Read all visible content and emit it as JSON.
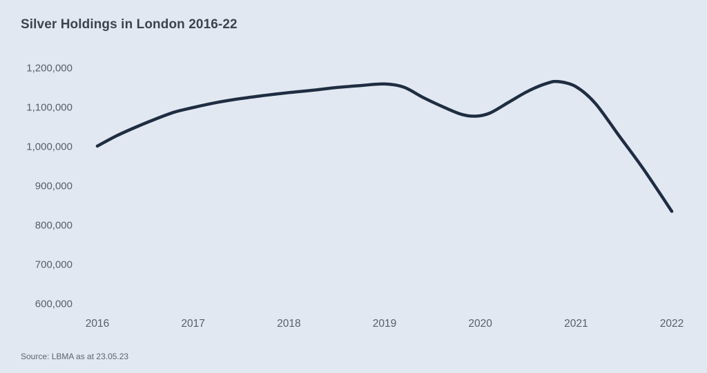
{
  "chart": {
    "title": "Silver Holdings in London 2016-22",
    "source": "Source: LBMA as at 23.05.23"
  },
  "colors": {
    "background": "#e2e8f1",
    "line": "#1f2d42",
    "title_text": "#3a4450",
    "axis_text": "#545e6a",
    "source_text": "#5a6470"
  },
  "chart_data": {
    "type": "line",
    "title": "Silver Holdings in London 2016-22",
    "xlabel": "",
    "ylabel": "",
    "xlim": [
      2016,
      2022
    ],
    "ylim": [
      600000,
      1200000
    ],
    "grid": false,
    "legend": false,
    "x_ticks": [
      2016,
      2017,
      2018,
      2019,
      2020,
      2021,
      2022
    ],
    "x_tick_labels": [
      "2016",
      "2017",
      "2018",
      "2019",
      "2020",
      "2021",
      "2022"
    ],
    "y_ticks": [
      600000,
      700000,
      800000,
      900000,
      1000000,
      1100000,
      1200000
    ],
    "y_tick_labels": [
      "600,000",
      "700,000",
      "800,000",
      "900,000",
      "1,000,000",
      "1,100,000",
      "1,200,000"
    ],
    "annotations": [],
    "source": "Source: LBMA as at 23.05.23",
    "series": [
      {
        "name": "Silver Holdings in London",
        "x": [
          2016.0,
          2016.2,
          2016.4,
          2016.6,
          2016.8,
          2017.0,
          2017.25,
          2017.5,
          2017.75,
          2018.0,
          2018.25,
          2018.5,
          2018.75,
          2019.0,
          2019.2,
          2019.4,
          2019.6,
          2019.8,
          2019.95,
          2020.1,
          2020.3,
          2020.5,
          2020.7,
          2020.82,
          2021.0,
          2021.2,
          2021.45,
          2021.7,
          2022.0
        ],
        "y": [
          1002000,
          1028000,
          1050000,
          1070000,
          1088000,
          1100000,
          1113000,
          1123000,
          1131000,
          1138000,
          1144000,
          1151000,
          1156000,
          1160000,
          1152000,
          1126000,
          1103000,
          1083000,
          1078000,
          1086000,
          1114000,
          1142000,
          1162000,
          1166000,
          1153000,
          1111000,
          1028000,
          945000,
          836000
        ]
      }
    ]
  }
}
